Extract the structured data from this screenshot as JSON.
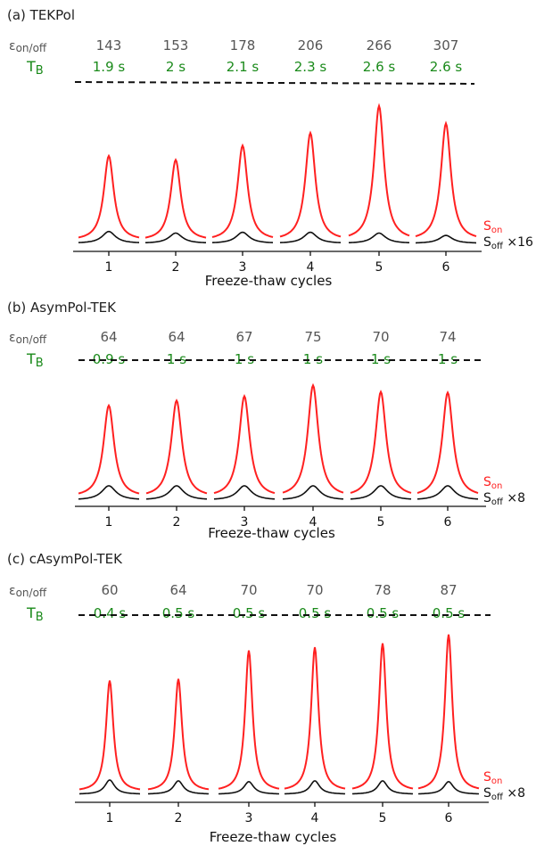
{
  "colors": {
    "on": "#ff2020",
    "off": "#111111",
    "tb": "#1a8a1a",
    "eps": "#555555"
  },
  "chart_data": [
    {
      "type": "line",
      "title": "(a) TEKPol",
      "eps_label": "εon/off",
      "tb_label": "TB",
      "xlabel": "Freeze-thaw cycles",
      "categories": [
        "1",
        "2",
        "3",
        "4",
        "5",
        "6"
      ],
      "eps_values": [
        "143",
        "153",
        "178",
        "206",
        "266",
        "307"
      ],
      "tb_values": [
        "1.9 s",
        "2 s",
        "2.1 s",
        "2.3 s",
        "2.6 s",
        "2.6 s"
      ],
      "series": [
        {
          "name": "Son",
          "values": [
            107,
            102,
            120,
            136,
            170,
            148
          ]
        },
        {
          "name": "Soff ×16",
          "values": [
            15,
            13,
            14,
            14,
            13,
            10
          ]
        }
      ],
      "legend_on": "Son",
      "legend_off": "Soff ×16",
      "ylim": [
        0,
        180
      ]
    },
    {
      "type": "line",
      "title": "(b) AsymPol-TEK",
      "eps_label": "εon/off",
      "tb_label": "TB",
      "xlabel": "Freeze-thaw cycles",
      "categories": [
        "1",
        "2",
        "3",
        "4",
        "5",
        "6"
      ],
      "eps_values": [
        "64",
        "64",
        "67",
        "75",
        "70",
        "74"
      ],
      "tb_values": [
        "0.9 s",
        "1 s",
        "1 s",
        "1 s",
        "1 s",
        "1 s"
      ],
      "series": [
        {
          "name": "Son",
          "values": [
            128,
            135,
            141,
            156,
            147,
            146
          ]
        },
        {
          "name": "Soff ×8",
          "values": [
            20,
            20,
            20,
            20,
            20,
            20
          ]
        }
      ],
      "legend_on": "Son",
      "legend_off": "Soff ×8",
      "ylim": [
        0,
        180
      ]
    },
    {
      "type": "line",
      "title": "(c) cAsymPol-TEK",
      "eps_label": "εon/off",
      "tb_label": "TB",
      "xlabel": "Freeze-thaw cycles",
      "categories": [
        "1",
        "2",
        "3",
        "4",
        "5",
        "6"
      ],
      "eps_values": [
        "60",
        "64",
        "70",
        "70",
        "78",
        "87"
      ],
      "tb_values": [
        "0.4 s",
        "0.5 s",
        "0.5 s",
        "0.5 s",
        "0.5 s",
        "0.5 s"
      ],
      "series": [
        {
          "name": "Son",
          "values": [
            140,
            142,
            178,
            182,
            187,
            198
          ]
        },
        {
          "name": "Soff ×8",
          "values": [
            18,
            17,
            16,
            17,
            17,
            16
          ]
        }
      ],
      "legend_on": "Son",
      "legend_off": "Soff ×8",
      "ylim": [
        0,
        200
      ]
    }
  ]
}
